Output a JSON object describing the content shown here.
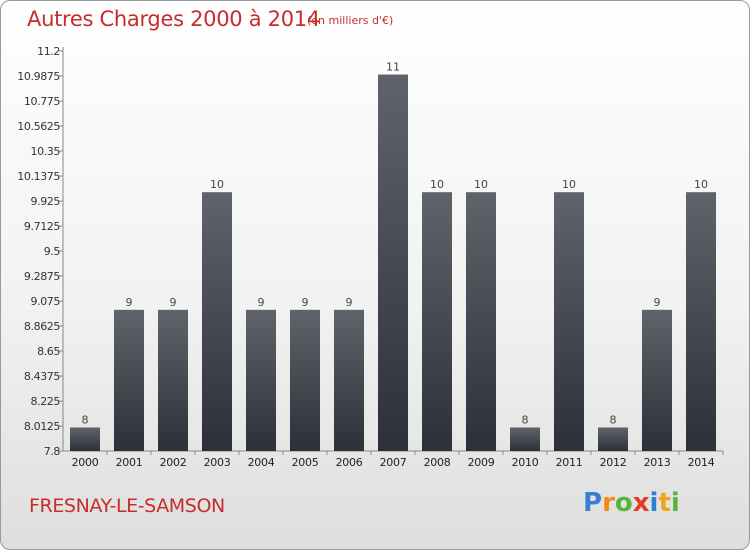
{
  "header": {
    "title": "Autres Charges 2000 à 2014",
    "subtitle": "(en milliers d'€)"
  },
  "footer": {
    "commune": "FRESNAY-LE-SAMSON",
    "logo_letters": [
      "P",
      "r",
      "o",
      "x",
      "i",
      "t",
      "i"
    ],
    "logo_colors": [
      "#3a7fd0",
      "#f08a1c",
      "#57b33a",
      "#e23b2e",
      "#2f7fd0",
      "#f0a21c",
      "#57b33a"
    ]
  },
  "colors": {
    "title": "#c62d2d",
    "bar_top": "#5f646b",
    "bar_bottom": "#2c3038"
  },
  "chart_data": {
    "type": "bar",
    "title": "Autres Charges 2000 à 2014",
    "subtitle": "(en milliers d'€)",
    "categories": [
      "2000",
      "2001",
      "2002",
      "2003",
      "2004",
      "2005",
      "2006",
      "2007",
      "2008",
      "2009",
      "2010",
      "2011",
      "2012",
      "2013",
      "2014"
    ],
    "values": [
      8,
      9,
      9,
      10,
      9,
      9,
      9,
      11,
      10,
      10,
      8,
      10,
      8,
      9,
      10
    ],
    "data_labels": [
      "8",
      "9",
      "9",
      "10",
      "9",
      "9",
      "9",
      "11",
      "10",
      "10",
      "8",
      "10",
      "8",
      "9",
      "10"
    ],
    "ylim": [
      7.8,
      11.2
    ],
    "yticks": [
      7.8,
      8.0125,
      8.225,
      8.4375,
      8.65,
      8.8625,
      9.075,
      9.2875,
      9.5,
      9.7125,
      9.925,
      10.1375,
      10.35,
      10.5625,
      10.775,
      10.9875,
      11.2
    ],
    "ytick_labels": [
      "7.8",
      "8.0125",
      "8.225",
      "8.4375",
      "8.65",
      "8.8625",
      "9.075",
      "9.2875",
      "9.5",
      "9.7125",
      "9.925",
      "10.1375",
      "10.35",
      "10.5625",
      "10.775",
      "10.9875",
      "11.2"
    ],
    "xlabel": "",
    "ylabel": "",
    "grid": false,
    "legend": "none"
  }
}
